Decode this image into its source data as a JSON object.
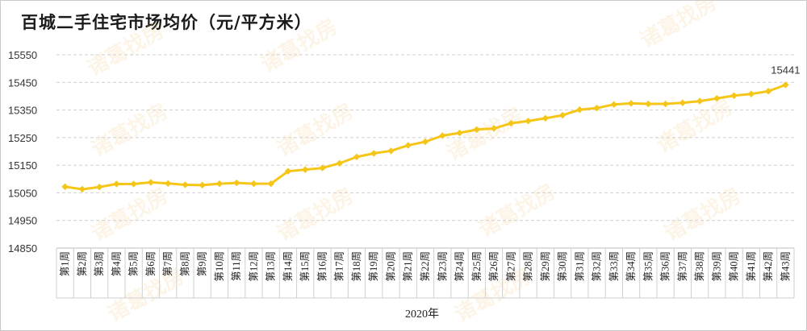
{
  "chart_data": {
    "type": "line",
    "title": "百城二手住宅市场均价（元/平方米）",
    "xlabel": "2020年",
    "ylabel": "",
    "ylim": [
      14850,
      15550
    ],
    "yticks": [
      14850,
      14950,
      15050,
      15150,
      15250,
      15350,
      15450,
      15550
    ],
    "grid": true,
    "line_color": "#f5c518",
    "categories": [
      "第1周",
      "第2周",
      "第3周",
      "第4周",
      "第5周",
      "第6周",
      "第7周",
      "第8周",
      "第9周",
      "第10周",
      "第11周",
      "第12周",
      "第13周",
      "第14周",
      "第15周",
      "第16周",
      "第17周",
      "第18周",
      "第19周",
      "第20周",
      "第21周",
      "第22周",
      "第23周",
      "第24周",
      "第25周",
      "第26周",
      "第27周",
      "第28周",
      "第29周",
      "第30周",
      "第31周",
      "第32周",
      "第33周",
      "第34周",
      "第35周",
      "第36周",
      "第37周",
      "第38周",
      "第39周",
      "第40周",
      "第41周",
      "第42周",
      "第43周"
    ],
    "series": [
      {
        "values": [
          15072,
          15063,
          15071,
          15082,
          15082,
          15088,
          15084,
          15079,
          15078,
          15083,
          15086,
          15083,
          15083,
          15128,
          15134,
          15140,
          15157,
          15180,
          15193,
          15202,
          15222,
          15235,
          15257,
          15267,
          15279,
          15283,
          15302,
          15310,
          15320,
          15331,
          15351,
          15357,
          15370,
          15374,
          15372,
          15372,
          15376,
          15382,
          15392,
          15402,
          15408,
          15418,
          15441
        ]
      }
    ],
    "annotations": [
      {
        "category": "第43周",
        "text": "15441"
      }
    ],
    "watermark": "诸葛找房"
  }
}
